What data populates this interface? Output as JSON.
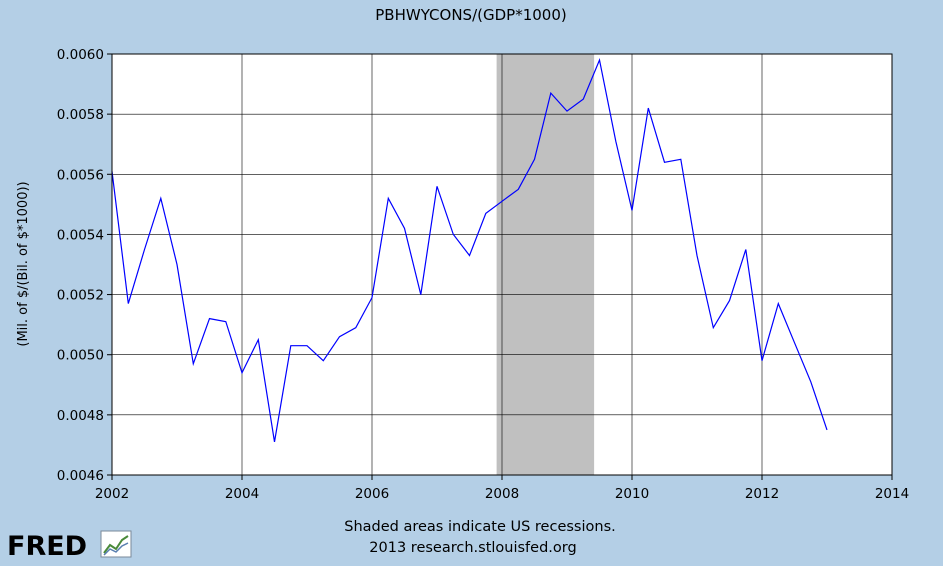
{
  "chart_data": {
    "type": "line",
    "title": "PBHWYCONS/(GDP*1000)",
    "xlabel": "",
    "ylabel": "(Mil. of $/(Bil. of $*1000))",
    "xlim": [
      2002,
      2014
    ],
    "ylim": [
      0.0046,
      0.006
    ],
    "x_ticks": [
      2002,
      2004,
      2006,
      2008,
      2010,
      2012,
      2014
    ],
    "y_ticks": [
      "0.0046",
      "0.0048",
      "0.0050",
      "0.0052",
      "0.0054",
      "0.0056",
      "0.0058",
      "0.0060"
    ],
    "grid": true,
    "recession": {
      "start": 2007.917,
      "end": 2009.417,
      "color": "#c0c0c0"
    },
    "series": [
      {
        "name": "PBHWYCONS/(GDP*1000)",
        "color": "#0000ff",
        "x": [
          2002.0,
          2002.25,
          2002.5,
          2002.75,
          2003.0,
          2003.25,
          2003.5,
          2003.75,
          2004.0,
          2004.25,
          2004.5,
          2004.75,
          2005.0,
          2005.25,
          2005.5,
          2005.75,
          2006.0,
          2006.25,
          2006.5,
          2006.75,
          2007.0,
          2007.25,
          2007.5,
          2007.75,
          2008.0,
          2008.25,
          2008.5,
          2008.75,
          2009.0,
          2009.25,
          2009.5,
          2009.75,
          2010.0,
          2010.25,
          2010.5,
          2010.75,
          2011.0,
          2011.25,
          2011.5,
          2011.75,
          2012.0,
          2012.25,
          2012.5,
          2012.75,
          2013.0
        ],
        "values": [
          0.00561,
          0.00517,
          0.00535,
          0.00552,
          0.0053,
          0.00497,
          0.00512,
          0.00511,
          0.00494,
          0.00505,
          0.00471,
          0.00503,
          0.00503,
          0.00498,
          0.00506,
          0.00509,
          0.00519,
          0.00552,
          0.00542,
          0.0052,
          0.00556,
          0.0054,
          0.00533,
          0.00547,
          0.00551,
          0.00555,
          0.00565,
          0.00587,
          0.00581,
          0.00585,
          0.00598,
          0.00571,
          0.00548,
          0.00582,
          0.00564,
          0.00565,
          0.00533,
          0.00509,
          0.00518,
          0.00535,
          0.00498,
          0.00517,
          0.00504,
          0.00491,
          0.00475
        ]
      }
    ],
    "footnote_line1": "Shaded areas indicate US recessions.",
    "footnote_line2": "2013 research.stlouisfed.org"
  },
  "logo": {
    "text": "FRED"
  }
}
